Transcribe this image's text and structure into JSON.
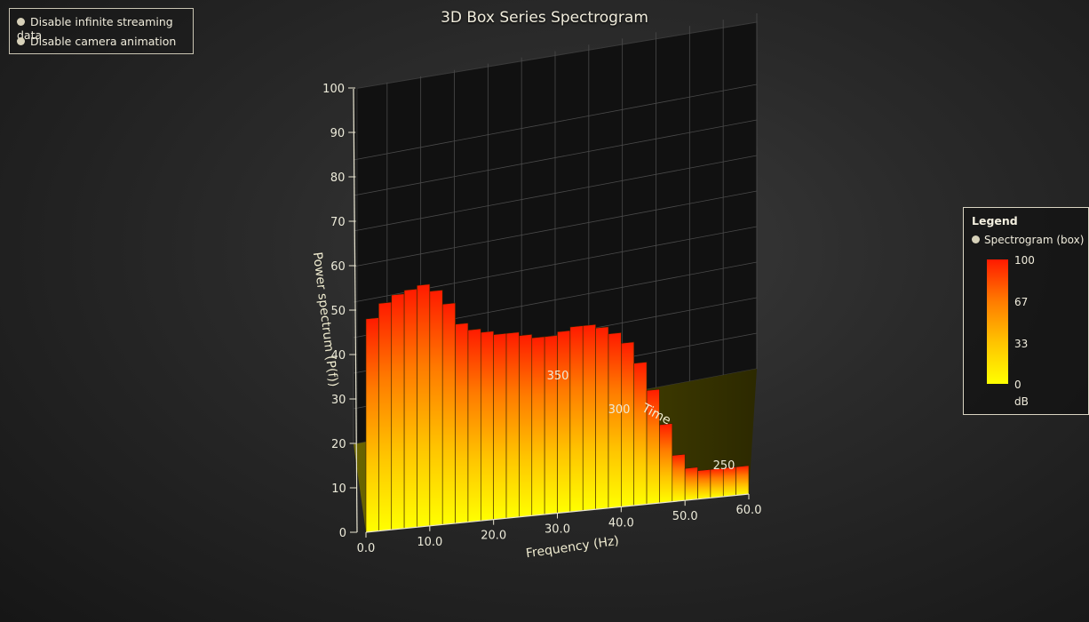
{
  "title": "3D Box Series Spectrogram",
  "controls": [
    {
      "label": "Disable infinite streaming data"
    },
    {
      "label": "Disable camera animation"
    }
  ],
  "legend": {
    "title": "Legend",
    "entry": "Spectrogram (box)",
    "ticks": [
      "100",
      "67",
      "33",
      "0"
    ],
    "unit": "dB"
  },
  "chart_data": {
    "type": "heatmap",
    "subtype": "3d-box-spectrogram",
    "title": "3D Box Series Spectrogram",
    "xlabel": "Frequency (Hz)",
    "ylabel": "Power spectrum (P(f))",
    "zlabel": "Time",
    "xlim": [
      0,
      60
    ],
    "ylim": [
      0,
      100
    ],
    "x_ticks": [
      "0.0",
      "10.0",
      "20.0",
      "30.0",
      "40.0",
      "50.0",
      "60.0"
    ],
    "y_ticks": [
      "0",
      "10",
      "20",
      "30",
      "40",
      "50",
      "60",
      "70",
      "80",
      "90",
      "100"
    ],
    "z_ticks": [
      "250",
      "300",
      "350"
    ],
    "grid": true,
    "legend_placement": "right",
    "colorscale": {
      "min": 0,
      "max": 100,
      "unit": "dB",
      "colors": [
        "#ffff00",
        "#ffc400",
        "#ff7a00",
        "#ff1a00"
      ]
    },
    "spectrum_x": [
      0,
      2,
      4,
      6,
      8,
      10,
      12,
      14,
      16,
      18,
      20,
      22,
      24,
      26,
      28,
      30,
      32,
      34,
      36,
      38,
      40,
      42,
      44,
      46,
      48,
      50,
      52,
      54,
      56,
      58,
      60
    ],
    "spectrum_y": [
      60,
      64,
      66,
      67,
      68,
      66,
      62,
      56,
      54,
      53,
      52,
      52,
      51,
      50,
      50,
      51,
      52,
      52,
      51,
      49,
      46,
      40,
      32,
      22,
      13,
      9,
      8,
      8,
      8,
      8,
      8
    ]
  }
}
